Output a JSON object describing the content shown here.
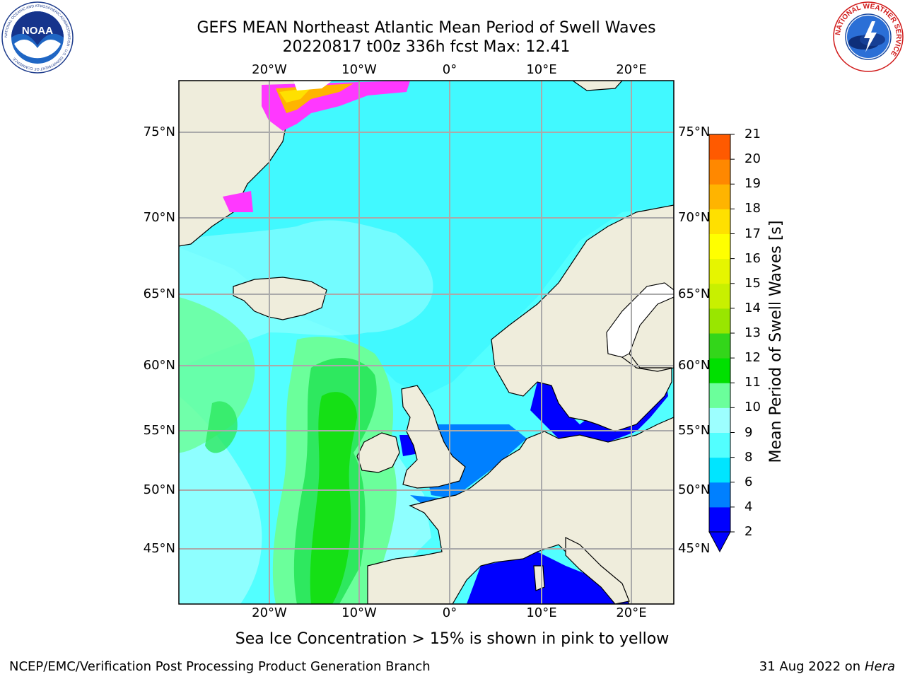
{
  "header": {
    "title_line1": "GEFS MEAN Northeast Atlantic Mean Period of Swell Waves",
    "title_line2": "20220817 t00z 336h fcst   Max: 12.41"
  },
  "map": {
    "lon_labels": [
      "20°W",
      "10°W",
      "0°",
      "10°E",
      "20°E"
    ],
    "lat_labels": [
      "75°N",
      "70°N",
      "65°N",
      "60°N",
      "55°N",
      "50°N",
      "45°N"
    ],
    "colors": {
      "land": "#efeddc",
      "ocean_base": "#52ffff",
      "ocean_2_4": "#0000ff",
      "ocean_4_6": "#0080ff",
      "ocean_6_8": "#00e5ff",
      "ocean_8_9": "#9dffff",
      "ocean_9_10": "#6bff9b",
      "ocean_10_11": "#2ee85f",
      "ocean_11_12": "#15e015",
      "ice_low": "#ff38ff",
      "ice_high": "#ffd700",
      "grid": "#aaaaaa"
    }
  },
  "colorbar": {
    "label": "Mean Period of Swell Waves [s]",
    "ticks": [
      "2",
      "4",
      "6",
      "8",
      "9",
      "10",
      "11",
      "12",
      "13",
      "14",
      "15",
      "16",
      "17",
      "18",
      "19",
      "20",
      "21"
    ],
    "colors": [
      "#0000ff",
      "#0080ff",
      "#00e5ff",
      "#52ffff",
      "#9dffff",
      "#6bff9b",
      "#00e000",
      "#33d61a",
      "#99e600",
      "#c8f000",
      "#e6f500",
      "#ffff00",
      "#ffe000",
      "#ffb400",
      "#ff8800",
      "#ff5a00",
      "#ff2a00",
      "#ff0000"
    ],
    "under_color": "#0000ff"
  },
  "note": "Sea Ice Concentration > 15% is shown in pink to yellow",
  "footer": {
    "left": "NCEP/EMC/Verification Post Processing Product Generation Branch",
    "date": "31 Aug 2022 on",
    "machine": "Hera"
  },
  "logos": {
    "noaa_text": "NOAA",
    "noaa_ring_text": "NATIONAL OCEANIC AND ATMOSPHERIC ADMINISTRATION · U.S. DEPARTMENT OF COMMERCE",
    "nws_ring_text": "NATIONAL WEATHER SERVICE"
  }
}
